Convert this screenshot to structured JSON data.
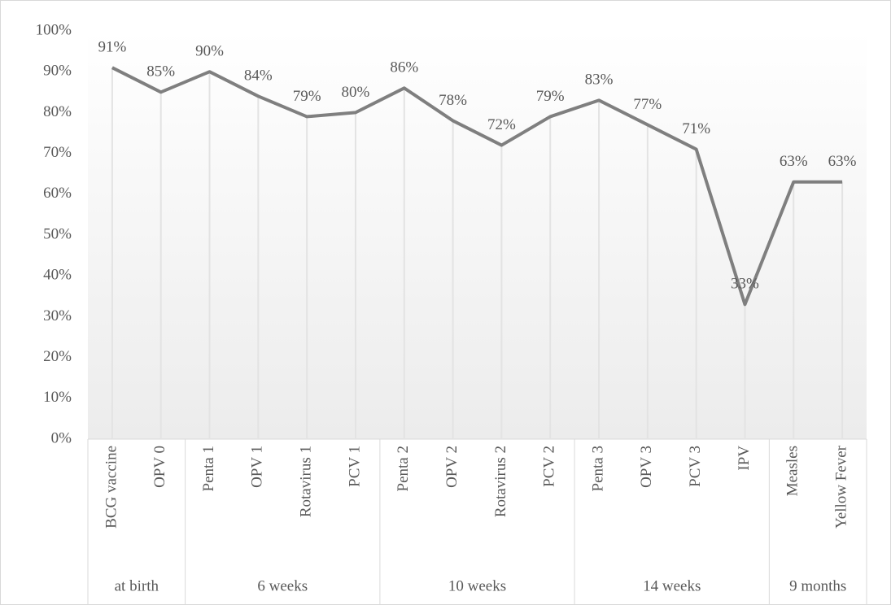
{
  "chart_data": {
    "type": "line",
    "categories": [
      "BCG vaccine",
      "OPV 0",
      "Penta 1",
      "OPV 1",
      "Rotavirus 1",
      "PCV 1",
      "Penta 2",
      "OPV 2",
      "Rotavirus 2",
      "PCV 2",
      "Penta 3",
      "OPV 3",
      "PCV 3",
      "IPV",
      "Measles",
      "Yellow Fever"
    ],
    "groups": [
      {
        "name": "at birth",
        "count": 2
      },
      {
        "name": "6 weeks",
        "count": 4
      },
      {
        "name": "10 weeks",
        "count": 4
      },
      {
        "name": "14 weeks",
        "count": 4
      },
      {
        "name": "9 months",
        "count": 2
      }
    ],
    "values": [
      91,
      85,
      90,
      84,
      79,
      80,
      86,
      78,
      72,
      79,
      83,
      77,
      71,
      33,
      63,
      63
    ],
    "value_labels": [
      "91%",
      "85%",
      "90%",
      "84%",
      "79%",
      "80%",
      "86%",
      "78%",
      "72%",
      "79%",
      "83%",
      "77%",
      "71%",
      "33%",
      "63%",
      "63%"
    ],
    "color": "#7f7f7f",
    "ylim": [
      0,
      100
    ],
    "yticks": [
      {
        "value": 0,
        "label": "0%"
      },
      {
        "value": 10,
        "label": "10%"
      },
      {
        "value": 20,
        "label": "20%"
      },
      {
        "value": 30,
        "label": "30%"
      },
      {
        "value": 40,
        "label": "40%"
      },
      {
        "value": 50,
        "label": "50%"
      },
      {
        "value": 60,
        "label": "60%"
      },
      {
        "value": 70,
        "label": "70%"
      },
      {
        "value": 80,
        "label": "80%"
      },
      {
        "value": 90,
        "label": "90%"
      },
      {
        "value": 100,
        "label": "100%"
      }
    ],
    "drop_lines": true
  }
}
